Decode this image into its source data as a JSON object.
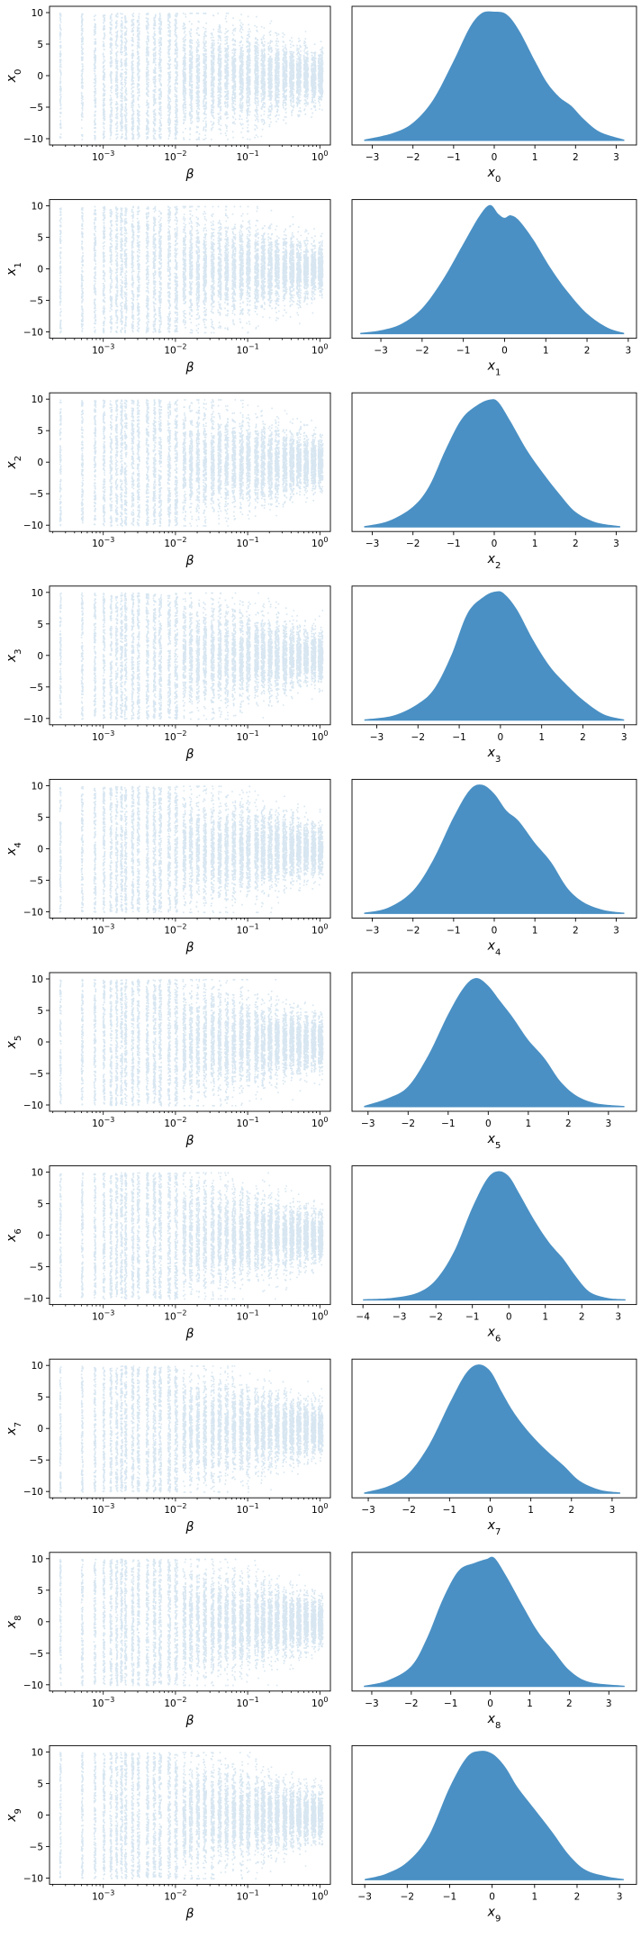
{
  "colors": {
    "marker": "#1f77b4",
    "kde_fill": "#4a90c4",
    "axes": "#000000"
  },
  "chart_data": {
    "type": "grid",
    "rows": [
      {
        "var": "x",
        "index": "0",
        "scatter": {
          "type": "scatter",
          "xlabel": "β",
          "ylabel": "x0",
          "xscale": "log",
          "xlim": [
            0.00018,
            1.4
          ],
          "ylim": [
            -11,
            11
          ],
          "x_ticks": [
            "10^-3",
            "10^-2",
            "10^-1",
            "10^0"
          ],
          "y_ticks": [
            -10,
            -5,
            0,
            5,
            10
          ],
          "x_levels": [
            0.00025,
            0.0005,
            0.00075,
            0.001,
            0.00125,
            0.0015,
            0.00175,
            0.002,
            0.0025,
            0.003,
            0.004,
            0.005,
            0.006,
            0.008,
            0.01,
            0.013,
            0.016,
            0.02,
            0.025,
            0.032,
            0.04,
            0.05,
            0.063,
            0.08,
            0.1,
            0.13,
            0.16,
            0.2,
            0.25,
            0.32,
            0.4,
            0.5,
            0.63,
            0.8,
            1.0
          ],
          "y_range": [
            -10,
            10
          ],
          "note": "spread narrows toward beta=1 (approx ±4 at beta=1)"
        },
        "density": {
          "type": "area",
          "xlabel": "x0",
          "xlim": [
            -3.5,
            3.5
          ],
          "x_ticks": [
            -3,
            -2,
            -1,
            0,
            1,
            2,
            3
          ],
          "x": [
            -3.2,
            -2.5,
            -2,
            -1.5,
            -1,
            -0.6,
            -0.3,
            0,
            0.3,
            0.6,
            1,
            1.3,
            1.6,
            1.9,
            2.2,
            2.6,
            3.2
          ],
          "y": [
            0.01,
            0.06,
            0.14,
            0.32,
            0.62,
            0.88,
            0.99,
            1.0,
            0.98,
            0.86,
            0.62,
            0.45,
            0.34,
            0.27,
            0.17,
            0.07,
            0.01
          ]
        }
      },
      {
        "var": "x",
        "index": "1",
        "scatter": {
          "type": "scatter",
          "xlabel": "β",
          "ylabel": "x1",
          "xscale": "log",
          "xlim": [
            0.00018,
            1.4
          ],
          "ylim": [
            -11,
            11
          ],
          "x_ticks": [
            "10^-3",
            "10^-2",
            "10^-1",
            "10^0"
          ],
          "y_ticks": [
            -10,
            -5,
            0,
            5,
            10
          ],
          "y_range": [
            -10,
            10
          ]
        },
        "density": {
          "type": "area",
          "xlabel": "x1",
          "xlim": [
            -3.7,
            3.2
          ],
          "x_ticks": [
            -3,
            -2,
            -1,
            0,
            1,
            2,
            3
          ],
          "x": [
            -3.5,
            -3,
            -2.5,
            -2,
            -1.5,
            -1,
            -0.6,
            -0.35,
            -0.15,
            0,
            0.15,
            0.35,
            0.7,
            1.1,
            1.5,
            2,
            2.5,
            2.9
          ],
          "y": [
            0.01,
            0.03,
            0.08,
            0.2,
            0.42,
            0.7,
            0.92,
            1.0,
            0.93,
            0.9,
            0.92,
            0.88,
            0.73,
            0.52,
            0.34,
            0.16,
            0.05,
            0.01
          ]
        }
      },
      {
        "var": "x",
        "index": "2",
        "scatter": {
          "type": "scatter",
          "xlabel": "β",
          "ylabel": "x2",
          "xscale": "log",
          "xlim": [
            0.00018,
            1.4
          ],
          "ylim": [
            -11,
            11
          ],
          "x_ticks": [
            "10^-3",
            "10^-2",
            "10^-1",
            "10^0"
          ],
          "y_ticks": [
            -10,
            -5,
            0,
            5,
            10
          ],
          "y_range": [
            -10,
            10
          ]
        },
        "density": {
          "type": "area",
          "xlabel": "x2",
          "xlim": [
            -3.5,
            3.5
          ],
          "x_ticks": [
            -3,
            -2,
            -1,
            0,
            1,
            2,
            3
          ],
          "x": [
            -3.2,
            -2.6,
            -2,
            -1.6,
            -1.2,
            -0.8,
            -0.4,
            -0.1,
            0.1,
            0.4,
            0.8,
            1.2,
            1.6,
            2,
            2.5,
            3.1
          ],
          "y": [
            0.01,
            0.05,
            0.16,
            0.32,
            0.6,
            0.84,
            0.95,
            0.99,
            0.97,
            0.82,
            0.6,
            0.42,
            0.26,
            0.12,
            0.04,
            0.01
          ]
        }
      },
      {
        "var": "x",
        "index": "3",
        "scatter": {
          "type": "scatter",
          "xlabel": "β",
          "ylabel": "x3",
          "xscale": "log",
          "xlim": [
            0.00018,
            1.4
          ],
          "ylim": [
            -11,
            11
          ],
          "x_ticks": [
            "10^-3",
            "10^-2",
            "10^-1",
            "10^0"
          ],
          "y_ticks": [
            -10,
            -5,
            0,
            5,
            10
          ],
          "y_range": [
            -10,
            10
          ]
        },
        "density": {
          "type": "area",
          "xlabel": "x3",
          "xlim": [
            -3.6,
            3.3
          ],
          "x_ticks": [
            -3,
            -2,
            -1,
            0,
            1,
            2,
            3
          ],
          "x": [
            -3.3,
            -2.6,
            -2,
            -1.6,
            -1.2,
            -0.8,
            -0.4,
            -0.1,
            0.1,
            0.4,
            0.8,
            1.2,
            1.6,
            2,
            2.5,
            3
          ],
          "y": [
            0.01,
            0.04,
            0.13,
            0.25,
            0.5,
            0.83,
            0.96,
            1.0,
            0.98,
            0.86,
            0.62,
            0.42,
            0.28,
            0.16,
            0.05,
            0.01
          ]
        }
      },
      {
        "var": "x",
        "index": "4",
        "scatter": {
          "type": "scatter",
          "xlabel": "β",
          "ylabel": "x4",
          "xscale": "log",
          "xlim": [
            0.00018,
            1.4
          ],
          "ylim": [
            -11,
            11
          ],
          "x_ticks": [
            "10^-3",
            "10^-2",
            "10^-1",
            "10^0"
          ],
          "y_ticks": [
            -10,
            -5,
            0,
            5,
            10
          ],
          "y_range": [
            -10,
            10
          ]
        },
        "density": {
          "type": "area",
          "xlabel": "x4",
          "xlim": [
            -3.5,
            3.5
          ],
          "x_ticks": [
            -3,
            -2,
            -1,
            0,
            1,
            2,
            3
          ],
          "x": [
            -3.2,
            -2.6,
            -2,
            -1.5,
            -1,
            -0.6,
            -0.3,
            0,
            0.3,
            0.6,
            1,
            1.4,
            1.8,
            2.2,
            2.7,
            3.2
          ],
          "y": [
            0.01,
            0.05,
            0.18,
            0.42,
            0.75,
            0.96,
            1.0,
            0.93,
            0.8,
            0.72,
            0.55,
            0.4,
            0.2,
            0.09,
            0.03,
            0.01
          ]
        }
      },
      {
        "var": "x",
        "index": "5",
        "scatter": {
          "type": "scatter",
          "xlabel": "β",
          "ylabel": "x5",
          "xscale": "log",
          "xlim": [
            0.00018,
            1.4
          ],
          "ylim": [
            -11,
            11
          ],
          "x_ticks": [
            "10^-3",
            "10^-2",
            "10^-1",
            "10^0"
          ],
          "y_ticks": [
            -10,
            -5,
            0,
            5,
            10
          ],
          "y_range": [
            -10,
            10
          ]
        },
        "density": {
          "type": "area",
          "xlabel": "x5",
          "xlim": [
            -3.4,
            3.7
          ],
          "x_ticks": [
            -3,
            -2,
            -1,
            0,
            1,
            2,
            3
          ],
          "x": [
            -3.1,
            -2.5,
            -2,
            -1.5,
            -1,
            -0.6,
            -0.3,
            0,
            0.3,
            0.6,
            1,
            1.4,
            1.8,
            2.2,
            2.7,
            3.4
          ],
          "y": [
            0.01,
            0.07,
            0.16,
            0.4,
            0.72,
            0.93,
            1.0,
            0.94,
            0.82,
            0.7,
            0.52,
            0.38,
            0.2,
            0.09,
            0.03,
            0.01
          ]
        }
      },
      {
        "var": "x",
        "index": "6",
        "scatter": {
          "type": "scatter",
          "xlabel": "β",
          "ylabel": "x6",
          "xscale": "log",
          "xlim": [
            0.00018,
            1.4
          ],
          "ylim": [
            -11,
            11
          ],
          "x_ticks": [
            "10^-3",
            "10^-2",
            "10^-1",
            "10^0"
          ],
          "y_ticks": [
            -10,
            -5,
            0,
            5,
            10
          ],
          "y_range": [
            -10,
            10
          ]
        },
        "density": {
          "type": "area",
          "xlabel": "x6",
          "xlim": [
            -4.3,
            3.5
          ],
          "x_ticks": [
            -4,
            -3,
            -2,
            -1,
            0,
            1,
            2,
            3
          ],
          "x": [
            -4,
            -3.2,
            -2.5,
            -2,
            -1.5,
            -1,
            -0.6,
            -0.3,
            0,
            0.3,
            0.7,
            1.1,
            1.5,
            1.8,
            2.2,
            2.7,
            3.2
          ],
          "y": [
            0.01,
            0.02,
            0.06,
            0.16,
            0.38,
            0.72,
            0.94,
            1.0,
            0.96,
            0.82,
            0.62,
            0.45,
            0.32,
            0.2,
            0.07,
            0.02,
            0.01
          ]
        }
      },
      {
        "var": "x",
        "index": "7",
        "scatter": {
          "type": "scatter",
          "xlabel": "β",
          "ylabel": "x7",
          "xscale": "log",
          "xlim": [
            0.00018,
            1.4
          ],
          "ylim": [
            -11,
            11
          ],
          "x_ticks": [
            "10^-3",
            "10^-2",
            "10^-1",
            "10^0"
          ],
          "y_ticks": [
            -10,
            -5,
            0,
            5,
            10
          ],
          "y_range": [
            -10,
            10
          ]
        },
        "density": {
          "type": "area",
          "xlabel": "x7",
          "xlim": [
            -3.4,
            3.6
          ],
          "x_ticks": [
            -3,
            -2,
            -1,
            0,
            1,
            2,
            3
          ],
          "x": [
            -3.1,
            -2.5,
            -2,
            -1.5,
            -1,
            -0.6,
            -0.3,
            0,
            0.3,
            0.6,
            1,
            1.4,
            1.8,
            2.2,
            2.7,
            3.2
          ],
          "y": [
            0.01,
            0.06,
            0.16,
            0.38,
            0.7,
            0.93,
            1.0,
            0.95,
            0.78,
            0.62,
            0.46,
            0.33,
            0.22,
            0.1,
            0.03,
            0.01
          ]
        }
      },
      {
        "var": "x",
        "index": "8",
        "scatter": {
          "type": "scatter",
          "xlabel": "β",
          "ylabel": "x8",
          "xscale": "log",
          "xlim": [
            0.00018,
            1.4
          ],
          "ylim": [
            -11,
            11
          ],
          "x_ticks": [
            "10^-3",
            "10^-2",
            "10^-1",
            "10^0"
          ],
          "y_ticks": [
            -10,
            -5,
            0,
            5,
            10
          ],
          "y_range": [
            -10,
            10
          ]
        },
        "density": {
          "type": "area",
          "xlabel": "x8",
          "xlim": [
            -3.5,
            3.7
          ],
          "x_ticks": [
            -3,
            -2,
            -1,
            0,
            1,
            2,
            3
          ],
          "x": [
            -3.2,
            -2.6,
            -2,
            -1.6,
            -1.2,
            -0.8,
            -0.4,
            -0.1,
            0.1,
            0.4,
            0.8,
            1.2,
            1.6,
            2,
            2.5,
            3.4
          ],
          "y": [
            0.01,
            0.05,
            0.16,
            0.38,
            0.68,
            0.9,
            0.96,
            0.99,
            1.0,
            0.86,
            0.64,
            0.43,
            0.28,
            0.13,
            0.04,
            0.01
          ]
        }
      },
      {
        "var": "x",
        "index": "9",
        "scatter": {
          "type": "scatter",
          "xlabel": "β",
          "ylabel": "x9",
          "xscale": "log",
          "xlim": [
            0.00018,
            1.4
          ],
          "ylim": [
            -11,
            11
          ],
          "x_ticks": [
            "10^-3",
            "10^-2",
            "10^-1",
            "10^0"
          ],
          "y_ticks": [
            -10,
            -5,
            0,
            5,
            10
          ],
          "y_range": [
            -10,
            10
          ]
        },
        "density": {
          "type": "area",
          "xlabel": "x9",
          "xlim": [
            -3.3,
            3.4
          ],
          "x_ticks": [
            -3,
            -2,
            -1,
            0,
            1,
            2,
            3
          ],
          "x": [
            -3,
            -2.5,
            -2,
            -1.5,
            -1,
            -0.6,
            -0.3,
            0,
            0.3,
            0.6,
            1,
            1.4,
            1.8,
            2.2,
            2.7,
            3.1
          ],
          "y": [
            0.01,
            0.05,
            0.14,
            0.34,
            0.72,
            0.95,
            1.0,
            0.98,
            0.88,
            0.72,
            0.55,
            0.38,
            0.2,
            0.08,
            0.03,
            0.01
          ]
        }
      }
    ]
  }
}
